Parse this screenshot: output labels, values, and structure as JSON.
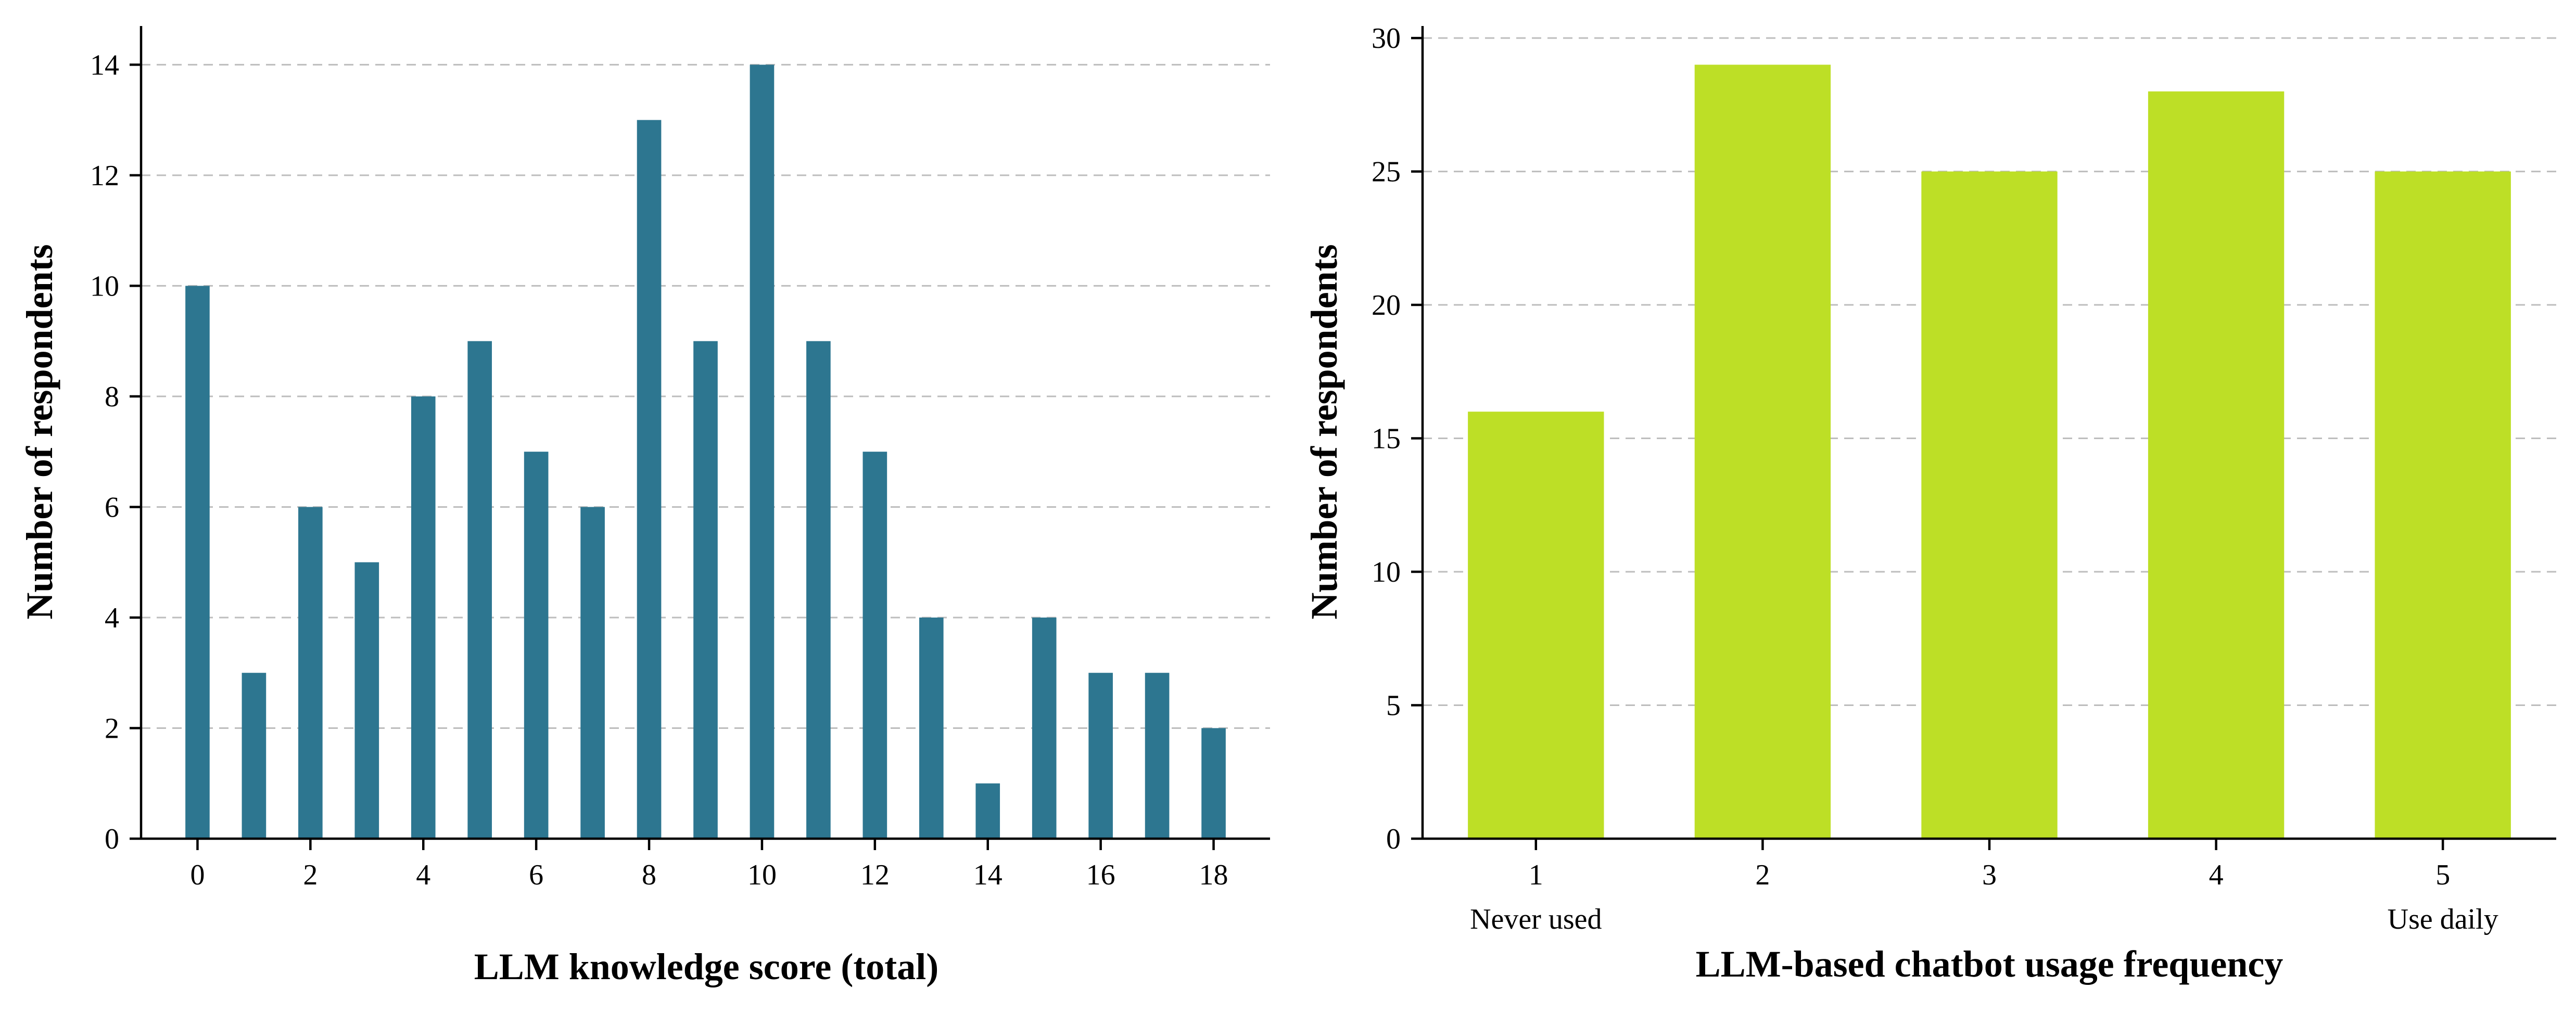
{
  "colors": {
    "left_bar": "#2d7690",
    "right_bar": "#bddf26",
    "grid": "#bdbdbd",
    "axis": "#000000"
  },
  "chart_data": [
    {
      "type": "bar",
      "title": "",
      "xlabel": "LLM knowledge score (total)",
      "ylabel": "Number of respondents",
      "categories": [
        "0",
        "1",
        "2",
        "3",
        "4",
        "5",
        "6",
        "7",
        "8",
        "9",
        "10",
        "11",
        "12",
        "13",
        "14",
        "15",
        "16",
        "17",
        "18"
      ],
      "values": [
        10,
        3,
        6,
        5,
        8,
        9,
        7,
        6,
        13,
        9,
        14,
        9,
        7,
        4,
        1,
        4,
        3,
        3,
        2
      ],
      "xtick_labels": [
        "0",
        "2",
        "4",
        "6",
        "8",
        "10",
        "12",
        "14",
        "16",
        "18"
      ],
      "yticks": [
        0,
        2,
        4,
        6,
        8,
        10,
        12,
        14
      ],
      "ylim": [
        0,
        14.7
      ],
      "xlim": [
        -1,
        19
      ],
      "grid": "y-dashed",
      "color": "#2d7690"
    },
    {
      "type": "bar",
      "title": "",
      "xlabel": "LLM-based chatbot usage frequency",
      "ylabel": "Number of respondents",
      "categories": [
        "1",
        "2",
        "3",
        "4",
        "5"
      ],
      "values": [
        16,
        29,
        25,
        28,
        25
      ],
      "category_sublabels": [
        "Never used",
        "",
        "",
        "",
        "Use daily"
      ],
      "yticks": [
        0,
        5,
        10,
        15,
        20,
        25,
        30
      ],
      "ylim": [
        0,
        30.45
      ],
      "xlim": [
        0.5,
        5.5
      ],
      "grid": "y-dashed",
      "color": "#bddf26"
    }
  ]
}
